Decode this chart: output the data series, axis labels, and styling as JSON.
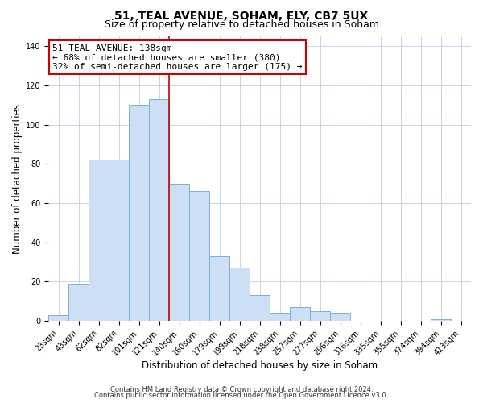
{
  "title": "51, TEAL AVENUE, SOHAM, ELY, CB7 5UX",
  "subtitle": "Size of property relative to detached houses in Soham",
  "xlabel": "Distribution of detached houses by size in Soham",
  "ylabel": "Number of detached properties",
  "bar_labels": [
    "23sqm",
    "43sqm",
    "62sqm",
    "82sqm",
    "101sqm",
    "121sqm",
    "140sqm",
    "160sqm",
    "179sqm",
    "199sqm",
    "218sqm",
    "238sqm",
    "257sqm",
    "277sqm",
    "296sqm",
    "316sqm",
    "335sqm",
    "355sqm",
    "374sqm",
    "394sqm",
    "413sqm"
  ],
  "bar_heights": [
    3,
    19,
    82,
    82,
    110,
    113,
    70,
    66,
    33,
    27,
    13,
    4,
    7,
    5,
    4,
    0,
    0,
    0,
    0,
    1,
    0
  ],
  "bar_color": "#ccdff5",
  "bar_edge_color": "#7ab0d8",
  "vline_x_index": 6,
  "vline_color": "#cc0000",
  "annotation_line1": "51 TEAL AVENUE: 138sqm",
  "annotation_line2": "← 68% of detached houses are smaller (380)",
  "annotation_line3": "32% of semi-detached houses are larger (175) →",
  "annotation_box_color": "#ffffff",
  "annotation_box_edge_color": "#cc0000",
  "ylim": [
    0,
    145
  ],
  "yticks": [
    0,
    20,
    40,
    60,
    80,
    100,
    120,
    140
  ],
  "footer_lines": [
    "Contains HM Land Registry data © Crown copyright and database right 2024.",
    "Contains public sector information licensed under the Open Government Licence v3.0."
  ],
  "background_color": "#ffffff",
  "grid_color": "#c8d4e8",
  "title_fontsize": 10,
  "subtitle_fontsize": 9,
  "axis_label_fontsize": 8.5,
  "tick_fontsize": 7,
  "footer_fontsize": 6,
  "annotation_fontsize": 8
}
